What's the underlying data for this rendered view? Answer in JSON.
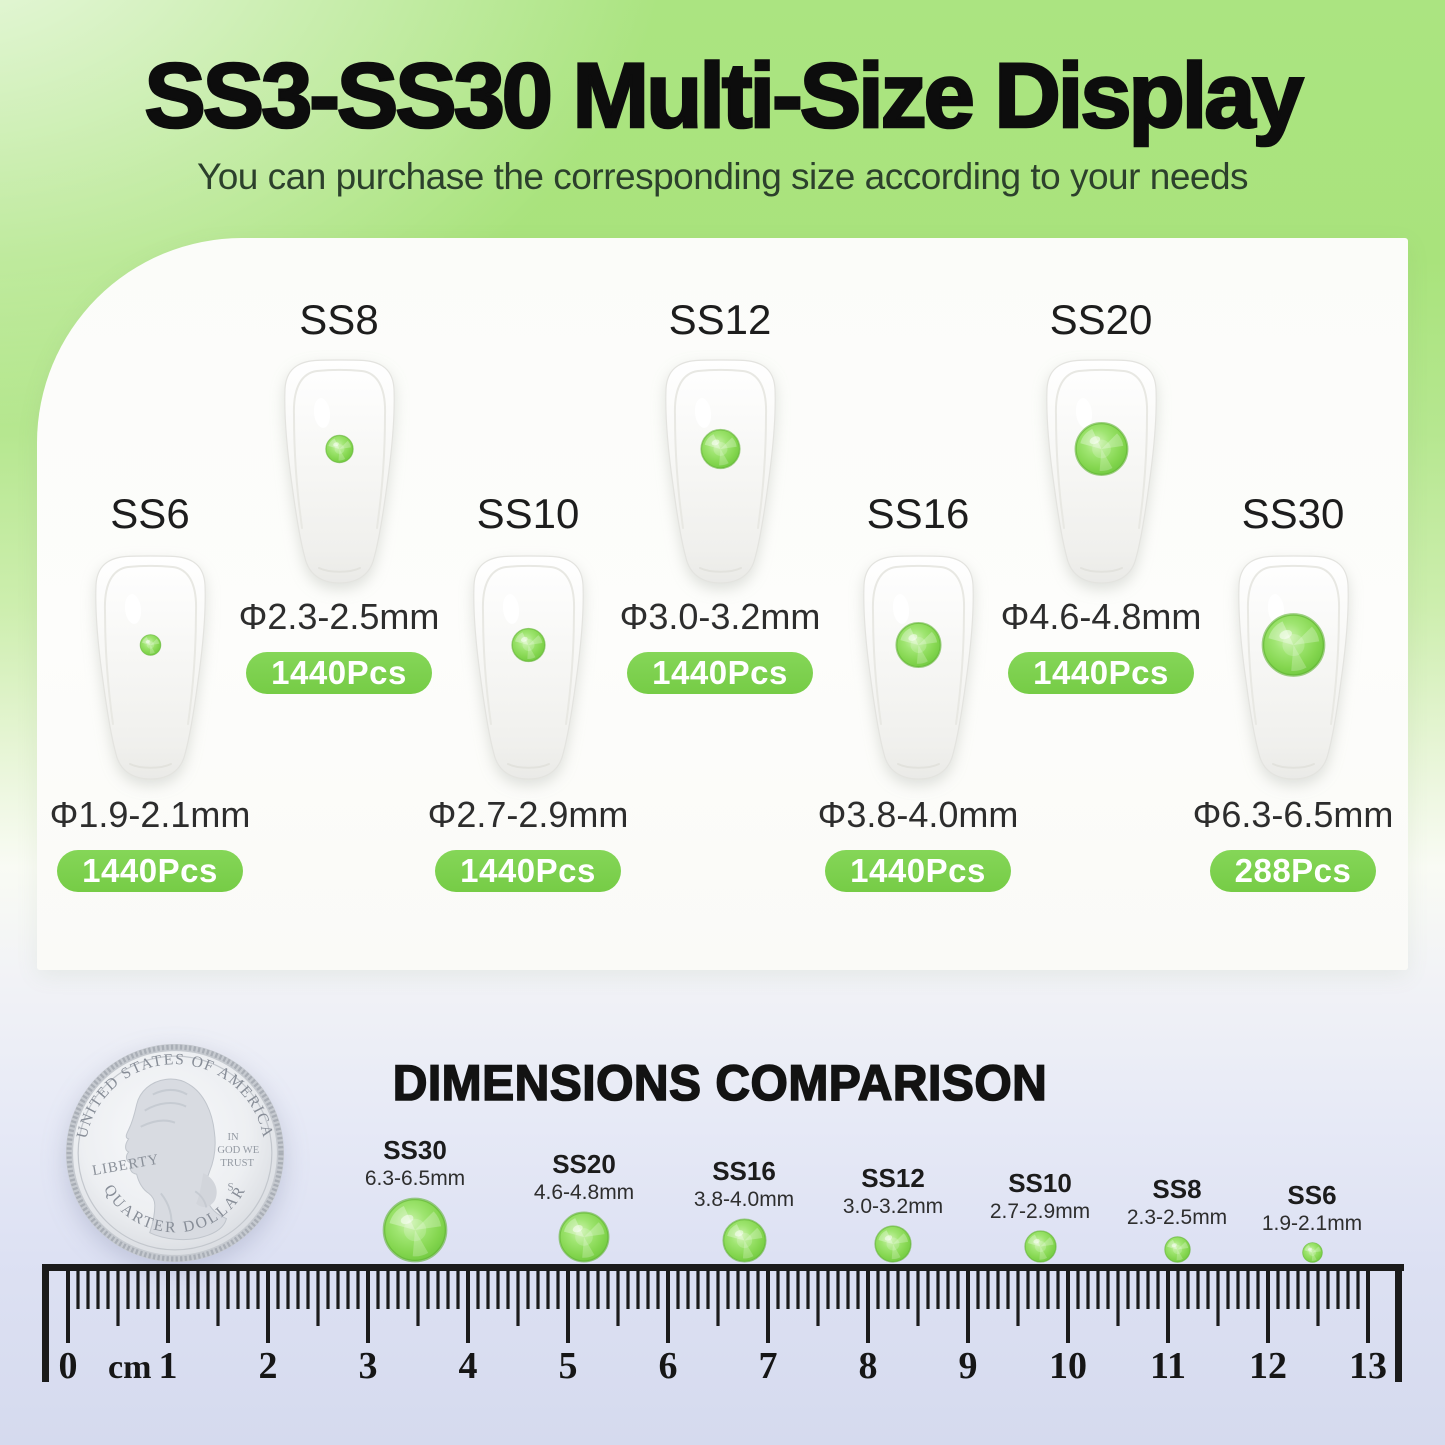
{
  "header": {
    "title": "SS3-SS30 Multi-Size Display",
    "subtitle": "You can purchase the corresponding size according to your needs"
  },
  "nails": [
    {
      "name": "SS8",
      "diameter": "Φ2.3-2.5mm",
      "count": "1440Pcs"
    },
    {
      "name": "SS12",
      "diameter": "Φ3.0-3.2mm",
      "count": "1440Pcs"
    },
    {
      "name": "SS20",
      "diameter": "Φ4.6-4.8mm",
      "count": "1440Pcs"
    },
    {
      "name": "SS6",
      "diameter": "Φ1.9-2.1mm",
      "count": "1440Pcs"
    },
    {
      "name": "SS10",
      "diameter": "Φ2.7-2.9mm",
      "count": "1440Pcs"
    },
    {
      "name": "SS16",
      "diameter": "Φ3.8-4.0mm",
      "count": "1440Pcs"
    },
    {
      "name": "SS30",
      "diameter": "Φ6.3-6.5mm",
      "count": "288Pcs"
    }
  ],
  "comparison": {
    "heading": "DIMENSIONS COMPARISON",
    "coin": {
      "top_text": "UNITED STATES OF AMERICA",
      "bottom_text": "QUARTER DOLLAR",
      "left_text": "LIBERTY",
      "motto_line1": "IN",
      "motto_line2": "GOD WE",
      "motto_line3": "TRUST",
      "mint_mark": "S"
    },
    "dots": [
      {
        "name": "SS30",
        "size": "6.3-6.5mm"
      },
      {
        "name": "SS20",
        "size": "4.6-4.8mm"
      },
      {
        "name": "SS16",
        "size": "3.8-4.0mm"
      },
      {
        "name": "SS12",
        "size": "3.0-3.2mm"
      },
      {
        "name": "SS10",
        "size": "2.7-2.9mm"
      },
      {
        "name": "SS8",
        "size": "2.3-2.5mm"
      },
      {
        "name": "SS6",
        "size": "1.9-2.1mm"
      }
    ],
    "ruler": {
      "unit": "cm",
      "start": 0,
      "end": 13
    }
  },
  "colors": {
    "accent_green": "#7ccf4f",
    "gem_green": "#8ada5c",
    "title_text": "#0d0d0d",
    "subtitle_text": "#2c402c",
    "ruler_black": "#1b1b1b",
    "background_top_green": "#a9e37c",
    "background_bottom_lavender": "#d5daee",
    "panel_white": "#fcfdfa"
  }
}
